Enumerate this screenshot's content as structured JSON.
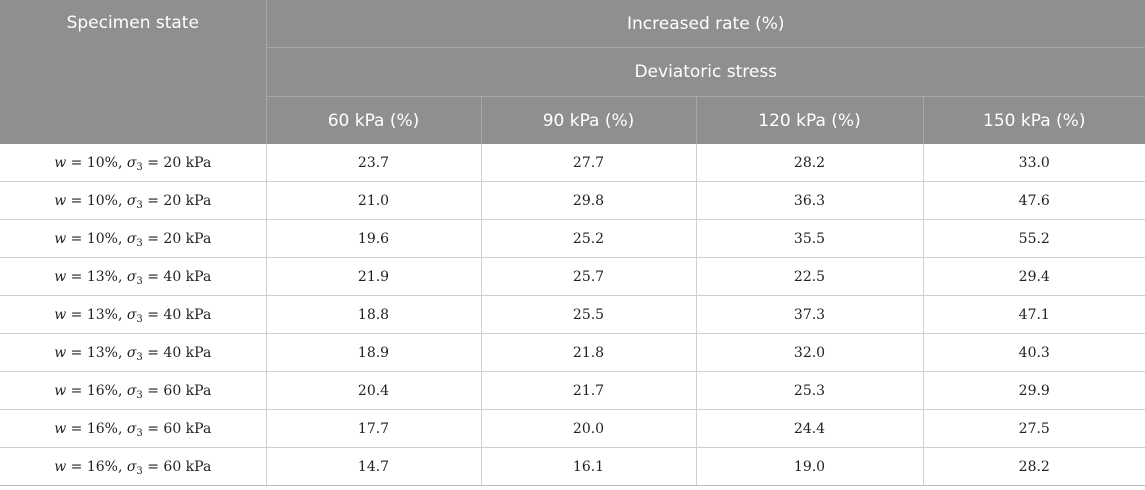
{
  "header": {
    "specimen_state": "Specimen state",
    "increased_rate": "Increased rate (%)",
    "deviatoric_stress": "Deviatoric stress",
    "columns": [
      "60 kPa (%)",
      "90 kPa (%)",
      "120 kPa (%)",
      "150 kPa (%)"
    ]
  },
  "rows": [
    {
      "w": "10%",
      "sigma": "20 kPa",
      "values": [
        "23.7",
        "27.7",
        "28.2",
        "33.0"
      ]
    },
    {
      "w": "10%",
      "sigma": "20 kPa",
      "values": [
        "21.0",
        "29.8",
        "36.3",
        "47.6"
      ]
    },
    {
      "w": "10%",
      "sigma": "20 kPa",
      "values": [
        "19.6",
        "25.2",
        "35.5",
        "55.2"
      ]
    },
    {
      "w": "13%",
      "sigma": "40 kPa",
      "values": [
        "21.9",
        "25.7",
        "22.5",
        "29.4"
      ]
    },
    {
      "w": "13%",
      "sigma": "40 kPa",
      "values": [
        "18.8",
        "25.5",
        "37.3",
        "47.1"
      ]
    },
    {
      "w": "13%",
      "sigma": "40 kPa",
      "values": [
        "18.9",
        "21.8",
        "32.0",
        "40.3"
      ]
    },
    {
      "w": "16%",
      "sigma": "60 kPa",
      "values": [
        "20.4",
        "21.7",
        "25.3",
        "29.9"
      ]
    },
    {
      "w": "16%",
      "sigma": "60 kPa",
      "values": [
        "17.7",
        "20.0",
        "24.4",
        "27.5"
      ]
    },
    {
      "w": "16%",
      "sigma": "60 kPa",
      "values": [
        "14.7",
        "16.1",
        "19.0",
        "28.2"
      ]
    }
  ]
}
